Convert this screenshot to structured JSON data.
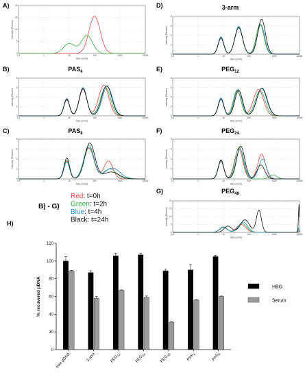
{
  "letters_BG": "B) - G)",
  "time_legend": [
    {
      "color_name": "Red",
      "time": "t=0h",
      "color": "#e8413c"
    },
    {
      "color_name": "Green",
      "time": "t=2h",
      "color": "#2fae3e"
    },
    {
      "color_name": "Blue",
      "time": "t=4h",
      "color": "#1f8fd0"
    },
    {
      "color_name": "Black",
      "time": "t=24h",
      "color": "#111111"
    }
  ],
  "chart_data": [
    {
      "id": "A",
      "type": "line",
      "letter": "A)",
      "title": "",
      "xlabel": "Size (d.nm)",
      "ylabel": "Intensity (Percent)",
      "xscale": "log",
      "xlim": [
        0.1,
        10000
      ],
      "ylim": [
        0,
        20
      ],
      "yticks": [
        0,
        5,
        10,
        15,
        20
      ],
      "series": [
        {
          "name": "Red",
          "peaks": [
            [
              100,
              15.5,
              0.22
            ]
          ]
        },
        {
          "name": "Green",
          "peaks": [
            [
              10,
              4.2,
              0.22
            ],
            [
              50,
              7.5,
              0.22
            ]
          ]
        }
      ]
    },
    {
      "id": "B",
      "type": "line",
      "letter": "B)",
      "title": "PAS",
      "title_sub": "4",
      "xlabel": "Size (d.nm)",
      "ylabel": "Intensity (Percent)",
      "xscale": "log",
      "xlim": [
        0.1,
        10000
      ],
      "ylim": [
        0,
        8
      ],
      "yticks": [
        0,
        2,
        4,
        6,
        8
      ],
      "series": [
        {
          "name": "Red",
          "peaks": [
            [
              8,
              3.4,
              0.11
            ],
            [
              35,
              5.6,
              0.15
            ],
            [
              230,
              6.5,
              0.2
            ]
          ]
        },
        {
          "name": "Green",
          "peaks": [
            [
              8,
              3.6,
              0.11
            ],
            [
              35,
              5.9,
              0.15
            ],
            [
              270,
              6.0,
              0.2
            ]
          ]
        },
        {
          "name": "Blue",
          "peaks": [
            [
              8,
              3.7,
              0.11
            ],
            [
              35,
              6.0,
              0.15
            ],
            [
              320,
              6.2,
              0.2
            ]
          ]
        },
        {
          "name": "Black",
          "peaks": [
            [
              8,
              3.5,
              0.11
            ],
            [
              35,
              5.8,
              0.15
            ],
            [
              300,
              6.4,
              0.2
            ]
          ]
        }
      ]
    },
    {
      "id": "C",
      "type": "line",
      "letter": "C)",
      "title": "PAS",
      "title_sub": "8",
      "xlabel": "Size (d.nm)",
      "ylabel": "Intensity (Percent)",
      "xscale": "log",
      "xlim": [
        0.1,
        10000
      ],
      "ylim": [
        0,
        8
      ],
      "yticks": [
        0,
        2,
        4,
        6,
        8
      ],
      "series": [
        {
          "name": "Red",
          "peaks": [
            [
              8,
              3.6,
              0.11
            ],
            [
              60,
              6.2,
              0.2
            ],
            [
              350,
              3.6,
              0.18
            ]
          ]
        },
        {
          "name": "Green",
          "peaks": [
            [
              8,
              3.8,
              0.11
            ],
            [
              60,
              6.8,
              0.2
            ],
            [
              400,
              2.0,
              0.25
            ]
          ]
        },
        {
          "name": "Blue",
          "peaks": [
            [
              8,
              3.4,
              0.11
            ],
            [
              60,
              6.4,
              0.2
            ],
            [
              500,
              2.2,
              0.3
            ]
          ]
        },
        {
          "name": "Black",
          "peaks": [
            [
              8,
              4.2,
              0.11
            ],
            [
              65,
              7.2,
              0.2
            ],
            [
              450,
              1.4,
              0.3
            ]
          ]
        }
      ]
    },
    {
      "id": "D",
      "type": "line",
      "letter": "D)",
      "title": "3-arm",
      "xlabel": "Size (d.nm)",
      "ylabel": "Intensity (Percent)",
      "xscale": "log",
      "xlim": [
        0.1,
        10000
      ],
      "ylim": [
        0,
        8
      ],
      "yticks": [
        0,
        2,
        4,
        6,
        8
      ],
      "series": [
        {
          "name": "Red",
          "peaks": [
            [
              8,
              3.5,
              0.11
            ],
            [
              40,
              5.7,
              0.15
            ],
            [
              280,
              6.4,
              0.15
            ]
          ]
        },
        {
          "name": "Green",
          "peaks": [
            [
              8,
              3.6,
              0.11
            ],
            [
              40,
              5.8,
              0.15
            ],
            [
              280,
              6.3,
              0.15
            ]
          ]
        },
        {
          "name": "Blue",
          "peaks": [
            [
              8,
              3.7,
              0.11
            ],
            [
              40,
              5.9,
              0.15
            ],
            [
              300,
              6.2,
              0.15
            ]
          ]
        },
        {
          "name": "Black",
          "peaks": [
            [
              8,
              3.4,
              0.11
            ],
            [
              40,
              5.6,
              0.15
            ],
            [
              320,
              7.4,
              0.15
            ]
          ]
        }
      ]
    },
    {
      "id": "E",
      "type": "line",
      "letter": "E)",
      "title": "PEG",
      "title_sub": "12",
      "xlabel": "Size (d.nm)",
      "ylabel": "Intensity (Percent)",
      "xscale": "log",
      "xlim": [
        0.1,
        10000
      ],
      "ylim": [
        0,
        8
      ],
      "yticks": [
        0,
        2,
        4,
        6,
        8
      ],
      "series": [
        {
          "name": "Red",
          "peaks": [
            [
              8,
              3.6,
              0.11
            ],
            [
              35,
              5.3,
              0.15
            ],
            [
              240,
              5.6,
              0.2
            ]
          ]
        },
        {
          "name": "Green",
          "peaks": [
            [
              8,
              3.7,
              0.11
            ],
            [
              35,
              5.5,
              0.15
            ],
            [
              280,
              5.3,
              0.2
            ]
          ]
        },
        {
          "name": "Blue",
          "peaks": [
            [
              8,
              3.8,
              0.11
            ],
            [
              38,
              5.6,
              0.15
            ],
            [
              320,
              5.8,
              0.2
            ]
          ]
        },
        {
          "name": "Black",
          "peaks": [
            [
              8,
              3.5,
              0.11
            ],
            [
              40,
              5.4,
              0.15
            ],
            [
              330,
              5.9,
              0.2
            ]
          ]
        }
      ]
    },
    {
      "id": "F",
      "type": "line",
      "letter": "F)",
      "title": "PEG",
      "title_sub": "24",
      "xlabel": "Size (d.nm)",
      "ylabel": "Intensity (Percent)",
      "xscale": "log",
      "xlim": [
        0.1,
        10000
      ],
      "ylim": [
        0,
        8
      ],
      "yticks": [
        0,
        2,
        4,
        6,
        8
      ],
      "series": [
        {
          "name": "Red",
          "peaks": [
            [
              8,
              3.5,
              0.11
            ],
            [
              40,
              6.1,
              0.16
            ],
            [
              320,
              5.0,
              0.15
            ]
          ]
        },
        {
          "name": "Green",
          "peaks": [
            [
              8,
              3.6,
              0.11
            ],
            [
              42,
              6.4,
              0.16
            ],
            [
              900,
              0.8,
              0.15
            ]
          ]
        },
        {
          "name": "Blue",
          "peaks": [
            [
              8,
              3.7,
              0.11
            ],
            [
              45,
              6.0,
              0.16
            ],
            [
              350,
              4.0,
              0.15
            ]
          ]
        },
        {
          "name": "Black",
          "peaks": [
            [
              8,
              3.8,
              0.11
            ],
            [
              48,
              6.6,
              0.16
            ],
            [
              300,
              2.8,
              0.15
            ]
          ]
        }
      ]
    },
    {
      "id": "G",
      "type": "line",
      "letter": "G)",
      "title": "PEG",
      "title_sub": "48",
      "xlabel": "Size (d.nm)",
      "ylabel": "Intensity (Percent)",
      "xscale": "log",
      "xlim": [
        0.1,
        10000
      ],
      "ylim": [
        0,
        20
      ],
      "yticks": [
        0,
        5,
        10,
        15,
        20
      ],
      "series": [
        {
          "name": "Red",
          "peaks": [
            [
              10,
              3.0,
              0.15
            ],
            [
              50,
              5.0,
              0.18
            ],
            [
              8500,
              1.5,
              0.02
            ]
          ]
        },
        {
          "name": "Green",
          "peaks": [
            [
              10,
              3.2,
              0.15
            ],
            [
              55,
              5.5,
              0.18
            ],
            [
              9000,
              3.0,
              0.02
            ]
          ]
        },
        {
          "name": "Blue",
          "peaks": [
            [
              10,
              3.5,
              0.15
            ],
            [
              60,
              6.5,
              0.18
            ],
            [
              9200,
              2.0,
              0.02
            ]
          ]
        },
        {
          "name": "Black",
          "peaks": [
            [
              15,
              4.0,
              0.15
            ],
            [
              70,
              8.0,
              0.18
            ],
            [
              250,
              14.0,
              0.1
            ],
            [
              9500,
              18.0,
              0.02
            ]
          ]
        }
      ]
    },
    {
      "id": "H",
      "type": "bar",
      "letter": "H)",
      "ylabel": "% recovered pDNA",
      "ylim": [
        0,
        120
      ],
      "yticks": [
        0,
        20,
        40,
        60,
        80,
        100,
        120
      ],
      "categories": [
        "free pDNA",
        "3-arm",
        "PEG",
        "PEG",
        "PEG",
        "PAS",
        "PAS"
      ],
      "category_subs": [
        "",
        "",
        "12",
        "24",
        "48",
        "4",
        "8"
      ],
      "series": [
        {
          "name": "HBG",
          "color": "#000000",
          "values": [
            100,
            87,
            106,
            107,
            89,
            90,
            105
          ],
          "errors": [
            5,
            2,
            3,
            2,
            2,
            6,
            1.5
          ]
        },
        {
          "name": "Serum",
          "color": "#9c9c9c",
          "values": [
            89,
            58,
            67,
            59,
            31,
            56,
            60
          ],
          "errors": [
            0.5,
            2,
            0.5,
            1.5,
            0.5,
            0.5,
            0.5
          ]
        }
      ]
    }
  ]
}
